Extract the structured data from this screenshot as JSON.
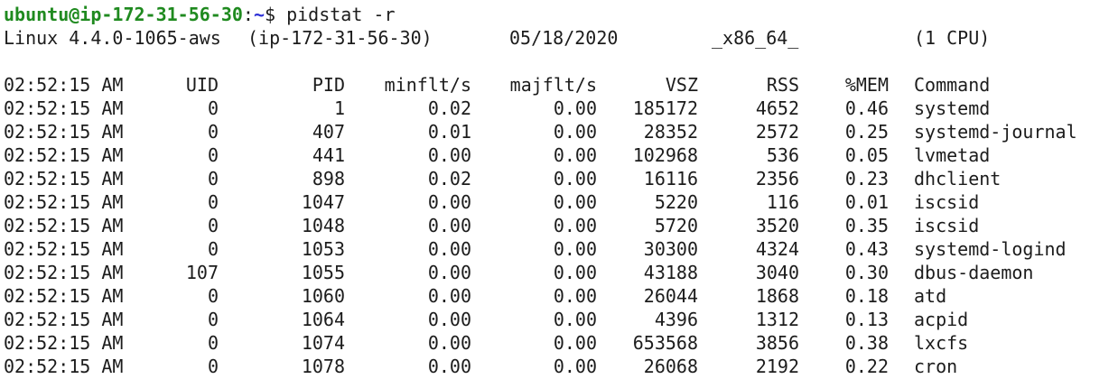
{
  "prompt": {
    "user_host": "ubuntu@ip-172-31-56-30",
    "separator": ":",
    "path": "~",
    "symbol": "$",
    "command": "pidstat -r"
  },
  "sysinfo": {
    "kernel": "Linux 4.4.0-1065-aws",
    "host": "(ip-172-31-56-30)",
    "date": "05/18/2020",
    "arch": "_x86_64_",
    "cpus": "(1 CPU)"
  },
  "table": {
    "headers": {
      "time": "02:52:15 AM",
      "uid": "UID",
      "pid": "PID",
      "minflt": "minflt/s",
      "majflt": "majflt/s",
      "vsz": "VSZ",
      "rss": "RSS",
      "mem": "%MEM",
      "command": "Command"
    },
    "rows": [
      {
        "time": "02:52:15 AM",
        "uid": "0",
        "pid": "1",
        "minflt": "0.02",
        "majflt": "0.00",
        "vsz": "185172",
        "rss": "4652",
        "mem": "0.46",
        "command": "systemd"
      },
      {
        "time": "02:52:15 AM",
        "uid": "0",
        "pid": "407",
        "minflt": "0.01",
        "majflt": "0.00",
        "vsz": "28352",
        "rss": "2572",
        "mem": "0.25",
        "command": "systemd-journal"
      },
      {
        "time": "02:52:15 AM",
        "uid": "0",
        "pid": "441",
        "minflt": "0.00",
        "majflt": "0.00",
        "vsz": "102968",
        "rss": "536",
        "mem": "0.05",
        "command": "lvmetad"
      },
      {
        "time": "02:52:15 AM",
        "uid": "0",
        "pid": "898",
        "minflt": "0.02",
        "majflt": "0.00",
        "vsz": "16116",
        "rss": "2356",
        "mem": "0.23",
        "command": "dhclient"
      },
      {
        "time": "02:52:15 AM",
        "uid": "0",
        "pid": "1047",
        "minflt": "0.00",
        "majflt": "0.00",
        "vsz": "5220",
        "rss": "116",
        "mem": "0.01",
        "command": "iscsid"
      },
      {
        "time": "02:52:15 AM",
        "uid": "0",
        "pid": "1048",
        "minflt": "0.00",
        "majflt": "0.00",
        "vsz": "5720",
        "rss": "3520",
        "mem": "0.35",
        "command": "iscsid"
      },
      {
        "time": "02:52:15 AM",
        "uid": "0",
        "pid": "1053",
        "minflt": "0.00",
        "majflt": "0.00",
        "vsz": "30300",
        "rss": "4324",
        "mem": "0.43",
        "command": "systemd-logind"
      },
      {
        "time": "02:52:15 AM",
        "uid": "107",
        "pid": "1055",
        "minflt": "0.00",
        "majflt": "0.00",
        "vsz": "43188",
        "rss": "3040",
        "mem": "0.30",
        "command": "dbus-daemon"
      },
      {
        "time": "02:52:15 AM",
        "uid": "0",
        "pid": "1060",
        "minflt": "0.00",
        "majflt": "0.00",
        "vsz": "26044",
        "rss": "1868",
        "mem": "0.18",
        "command": "atd"
      },
      {
        "time": "02:52:15 AM",
        "uid": "0",
        "pid": "1064",
        "minflt": "0.00",
        "majflt": "0.00",
        "vsz": "4396",
        "rss": "1312",
        "mem": "0.13",
        "command": "acpid"
      },
      {
        "time": "02:52:15 AM",
        "uid": "0",
        "pid": "1074",
        "minflt": "0.00",
        "majflt": "0.00",
        "vsz": "653568",
        "rss": "3856",
        "mem": "0.38",
        "command": "lxcfs"
      },
      {
        "time": "02:52:15 AM",
        "uid": "0",
        "pid": "1078",
        "minflt": "0.00",
        "majflt": "0.00",
        "vsz": "26068",
        "rss": "2192",
        "mem": "0.22",
        "command": "cron"
      }
    ]
  },
  "colors": {
    "background": "#ffffff",
    "text": "#1c1c1c",
    "prompt_user": "#1f8a1f",
    "prompt_path": "#2c2fd6"
  }
}
